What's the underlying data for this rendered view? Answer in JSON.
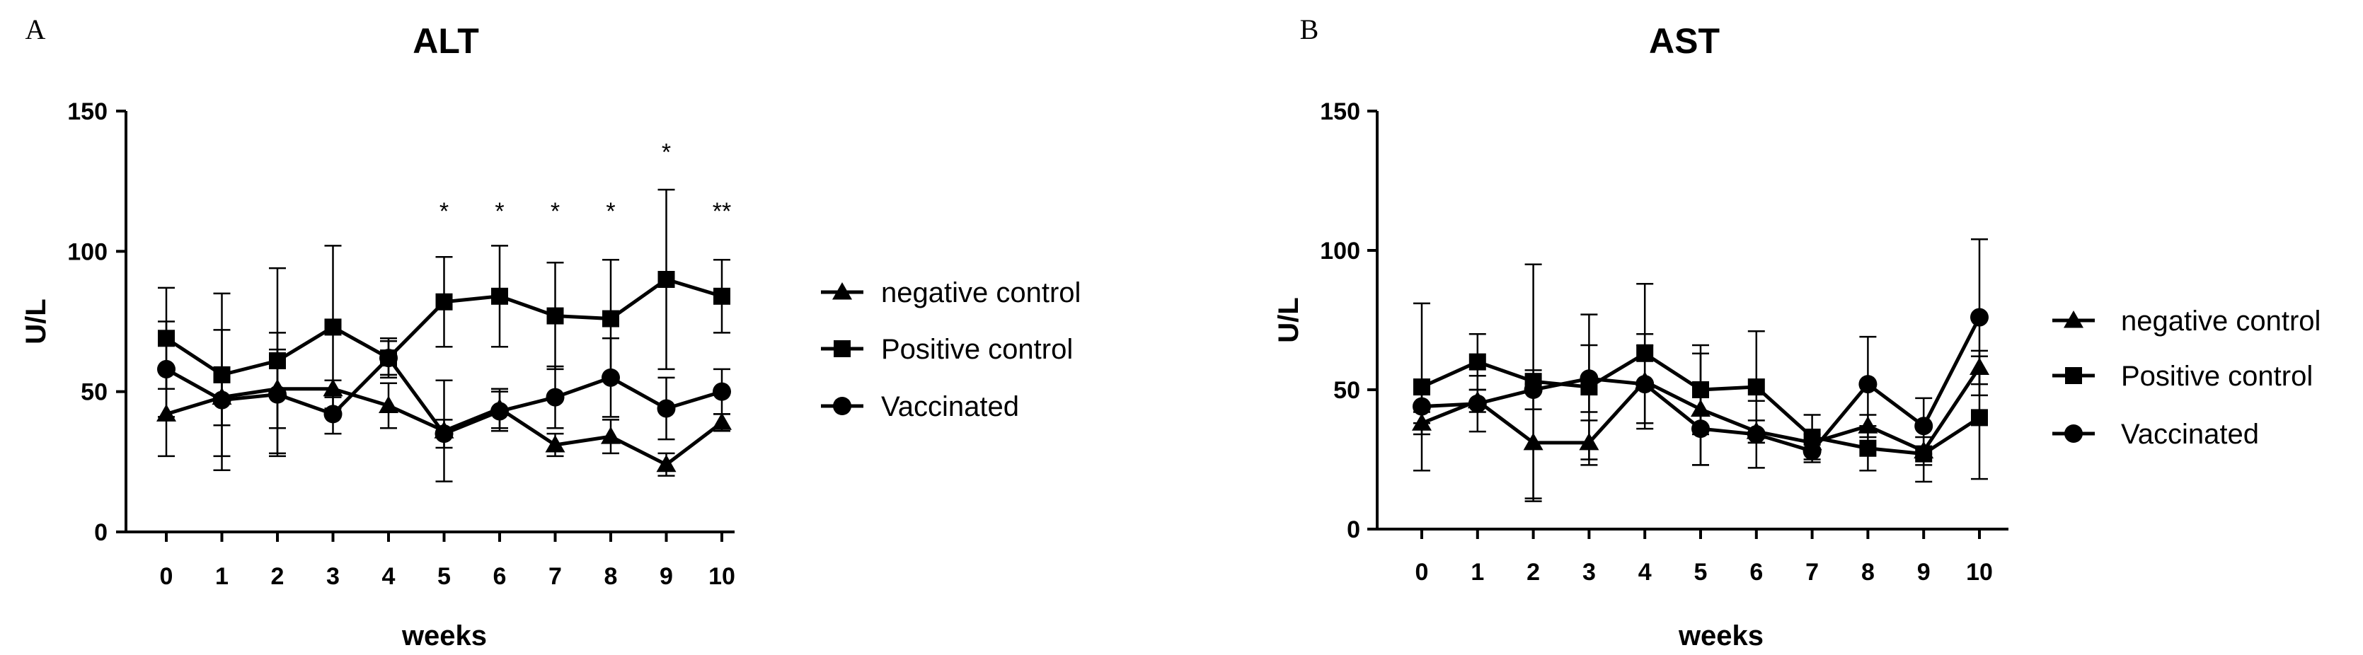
{
  "chart_data": [
    {
      "panel": "A",
      "type": "line",
      "title": "ALT",
      "xlabel": "weeks",
      "ylabel": "U/L",
      "ylim": [
        0,
        150
      ],
      "yticks": [
        0,
        50,
        100,
        150
      ],
      "x": [
        0,
        1,
        2,
        3,
        4,
        5,
        6,
        7,
        8,
        9,
        10
      ],
      "series": [
        {
          "name": "negative control",
          "marker": "triangle",
          "values": [
            42,
            48,
            51,
            51,
            45,
            36,
            44,
            31,
            34,
            24,
            39
          ],
          "err": [
            15,
            10,
            14,
            3,
            8,
            18,
            7,
            4,
            6,
            4,
            3
          ]
        },
        {
          "name": "Positive control",
          "marker": "square",
          "values": [
            69,
            56,
            61,
            73,
            62,
            82,
            84,
            77,
            76,
            90,
            84
          ],
          "err": [
            18,
            29,
            33,
            29,
            6,
            16,
            18,
            19,
            21,
            32,
            13
          ]
        },
        {
          "name": "Vaccinated",
          "marker": "circle",
          "values": [
            58,
            47,
            49,
            42,
            62,
            35,
            43,
            48,
            55,
            44,
            50
          ],
          "err": [
            17,
            25,
            22,
            7,
            7,
            5,
            7,
            11,
            14,
            11,
            8
          ]
        }
      ],
      "significance": [
        {
          "x": 5,
          "label": "*",
          "y": 115
        },
        {
          "x": 6,
          "label": "*",
          "y": 115
        },
        {
          "x": 7,
          "label": "*",
          "y": 115
        },
        {
          "x": 8,
          "label": "*",
          "y": 115
        },
        {
          "x": 9,
          "label": "*",
          "y": 136
        },
        {
          "x": 10,
          "label": "**",
          "y": 115
        }
      ]
    },
    {
      "panel": "B",
      "type": "line",
      "title": "AST",
      "xlabel": "weeks",
      "ylabel": "U/L",
      "ylim": [
        0,
        150
      ],
      "yticks": [
        0,
        50,
        100,
        150
      ],
      "x": [
        0,
        1,
        2,
        3,
        4,
        5,
        6,
        7,
        8,
        9,
        10
      ],
      "series": [
        {
          "name": "negative control",
          "marker": "triangle",
          "values": [
            38,
            46,
            31,
            31,
            53,
            43,
            35,
            31,
            37,
            28,
            58
          ],
          "err": [
            4,
            4,
            21,
            8,
            17,
            20,
            4,
            3,
            4,
            5,
            6
          ]
        },
        {
          "name": "Positive control",
          "marker": "square",
          "values": [
            51,
            60,
            53,
            51,
            63,
            50,
            51,
            33,
            29,
            27,
            40
          ],
          "err": [
            30,
            10,
            42,
            26,
            25,
            16,
            20,
            8,
            8,
            10,
            22
          ]
        },
        {
          "name": "Vaccinated",
          "marker": "circle",
          "values": [
            44,
            45,
            50,
            54,
            52,
            36,
            34,
            28,
            52,
            37,
            76
          ],
          "err": [
            6,
            10,
            7,
            12,
            14,
            13,
            12,
            4,
            17,
            10,
            28
          ]
        }
      ],
      "significance": []
    }
  ]
}
